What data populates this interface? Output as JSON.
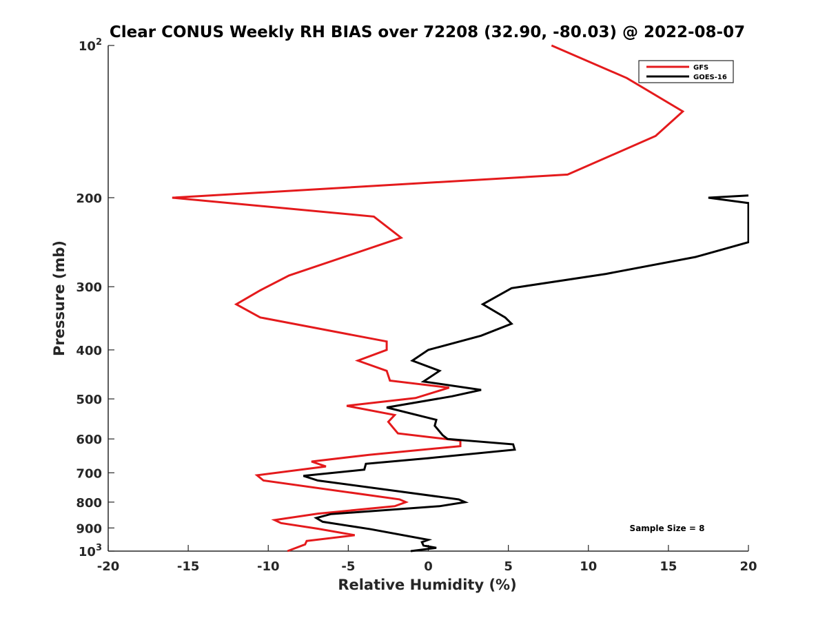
{
  "chart_data": {
    "type": "line",
    "title": "Clear CONUS Weekly RH BIAS over 72208 (32.90, -80.03) @ 2022-08-07",
    "xlabel": "Relative Humidity (%)",
    "ylabel": "Pressure (mb)",
    "xlim": [
      -20,
      20
    ],
    "ylim": [
      100,
      1000
    ],
    "yscale": "log",
    "y_reversed": true,
    "grid": false,
    "legend_position": "top-right",
    "x_ticks": [
      {
        "value": -20,
        "label": "-20"
      },
      {
        "value": -15,
        "label": "-15"
      },
      {
        "value": -10,
        "label": "-10"
      },
      {
        "value": -5,
        "label": "-5"
      },
      {
        "value": 0,
        "label": "0"
      },
      {
        "value": 5,
        "label": "5"
      },
      {
        "value": 10,
        "label": "10"
      },
      {
        "value": 15,
        "label": "15"
      },
      {
        "value": 20,
        "label": "20"
      }
    ],
    "y_ticks": [
      {
        "value": 100,
        "base": "10",
        "exp": "2"
      },
      {
        "value": 200,
        "base": "200",
        "exp": ""
      },
      {
        "value": 300,
        "base": "300",
        "exp": ""
      },
      {
        "value": 400,
        "base": "400",
        "exp": ""
      },
      {
        "value": 500,
        "base": "500",
        "exp": ""
      },
      {
        "value": 600,
        "base": "600",
        "exp": ""
      },
      {
        "value": 700,
        "base": "700",
        "exp": ""
      },
      {
        "value": 800,
        "base": "800",
        "exp": ""
      },
      {
        "value": 900,
        "base": "900",
        "exp": ""
      },
      {
        "value": 1000,
        "base": "10",
        "exp": "3"
      }
    ],
    "annotation": "Sample Size = 8",
    "series": [
      {
        "name": "GFS",
        "color": "#e41a1c",
        "points": [
          [
            7.7,
            100
          ],
          [
            12.4,
            116
          ],
          [
            15.9,
            135
          ],
          [
            14.2,
            151
          ],
          [
            8.7,
            180
          ],
          [
            -16.0,
            200
          ],
          [
            -3.4,
            218
          ],
          [
            -1.7,
            240
          ],
          [
            -8.7,
            285
          ],
          [
            -10.5,
            305
          ],
          [
            -12.0,
            325
          ],
          [
            -10.5,
            345
          ],
          [
            -2.6,
            385
          ],
          [
            -2.6,
            400
          ],
          [
            -4.4,
            420
          ],
          [
            -2.6,
            440
          ],
          [
            -2.4,
            460
          ],
          [
            1.3,
            475
          ],
          [
            -0.8,
            498
          ],
          [
            -5.1,
            516
          ],
          [
            -2.1,
            538
          ],
          [
            -2.5,
            555
          ],
          [
            -2.2,
            570
          ],
          [
            -1.9,
            585
          ],
          [
            2.0,
            605
          ],
          [
            2.0,
            620
          ],
          [
            -3.7,
            645
          ],
          [
            -7.3,
            665
          ],
          [
            -6.4,
            680
          ],
          [
            -10.7,
            708
          ],
          [
            -10.3,
            725
          ],
          [
            -1.8,
            790
          ],
          [
            -1.4,
            800
          ],
          [
            -2.1,
            815
          ],
          [
            -6.9,
            843
          ],
          [
            -9.6,
            868
          ],
          [
            -9.2,
            880
          ],
          [
            -6.9,
            903
          ],
          [
            -4.6,
            930
          ],
          [
            -7.6,
            955
          ],
          [
            -7.7,
            970
          ],
          [
            -8.8,
            1000
          ]
        ]
      },
      {
        "name": "GOES-16",
        "color": "#000000",
        "points": [
          [
            20.0,
            198
          ],
          [
            17.5,
            200
          ],
          [
            20.0,
            205
          ],
          [
            20.0,
            245
          ],
          [
            16.7,
            262
          ],
          [
            11.1,
            283
          ],
          [
            5.2,
            302
          ],
          [
            3.4,
            325
          ],
          [
            4.8,
            345
          ],
          [
            5.2,
            355
          ],
          [
            3.3,
            375
          ],
          [
            0.0,
            400
          ],
          [
            -1.0,
            420
          ],
          [
            0.7,
            440
          ],
          [
            -0.3,
            462
          ],
          [
            3.3,
            480
          ],
          [
            1.5,
            494
          ],
          [
            -2.6,
            520
          ],
          [
            0.5,
            550
          ],
          [
            0.4,
            565
          ],
          [
            0.9,
            590
          ],
          [
            1.2,
            600
          ],
          [
            5.3,
            615
          ],
          [
            5.4,
            630
          ],
          [
            0.0,
            655
          ],
          [
            -3.9,
            672
          ],
          [
            -4.0,
            690
          ],
          [
            -7.8,
            710
          ],
          [
            -6.9,
            725
          ],
          [
            1.9,
            790
          ],
          [
            2.3,
            800
          ],
          [
            0.7,
            815
          ],
          [
            -6.1,
            845
          ],
          [
            -7.0,
            860
          ],
          [
            -6.6,
            875
          ],
          [
            -3.6,
            905
          ],
          [
            0.0,
            950
          ],
          [
            -0.4,
            960
          ],
          [
            -0.3,
            975
          ],
          [
            0.5,
            985
          ],
          [
            -1.1,
            1000
          ]
        ]
      }
    ]
  }
}
